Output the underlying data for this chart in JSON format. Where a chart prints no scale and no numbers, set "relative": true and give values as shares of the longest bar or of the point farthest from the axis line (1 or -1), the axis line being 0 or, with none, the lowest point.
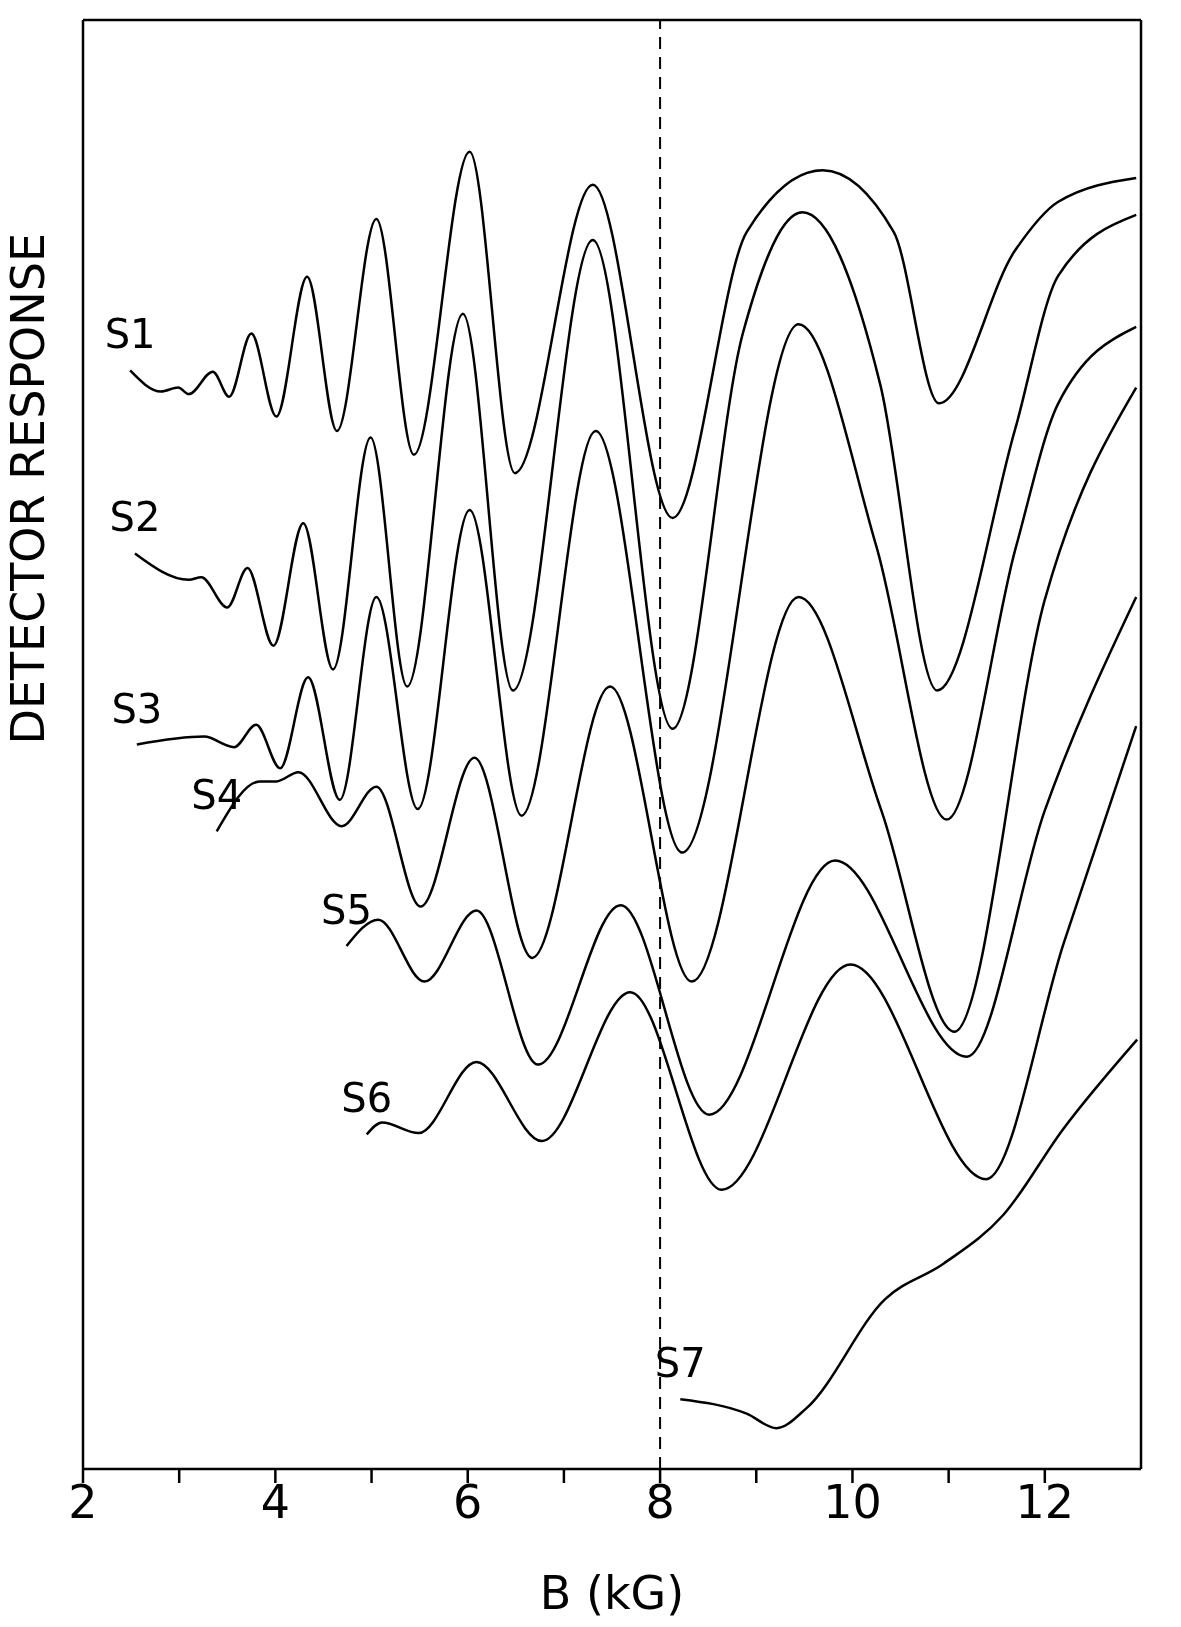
{
  "chart_data": {
    "type": "line",
    "relative": true,
    "xlabel": "B (kG)",
    "ylabel": "DETECTOR RESPONSE",
    "xlim": [
      2,
      13
    ],
    "xticks": [
      2,
      {
        "value": 3,
        "label": null
      },
      4,
      {
        "value": 5,
        "label": null
      },
      6,
      {
        "value": 7,
        "label": null
      },
      8,
      {
        "value": 9,
        "label": null
      },
      10,
      {
        "value": 11,
        "label": null
      },
      12
    ],
    "marker": "none",
    "line_style": "solid",
    "ref_lines": [
      {
        "axis": "x",
        "value": 8,
        "line_style": "dashed",
        "color": "#000000"
      }
    ],
    "series": [
      {
        "name": "S1",
        "color": "#000000",
        "x": [
          2.49,
          2.81,
          2.99,
          3.1,
          3.35,
          3.52,
          3.75,
          4.01,
          4.33,
          4.64,
          5.05,
          5.44,
          6.02,
          6.49,
          7.3,
          8.13,
          8.9,
          9.69,
          10.43,
          10.9,
          11.69,
          12.14,
          12.95
        ],
        "values": [
          0.834,
          0.818,
          0.821,
          0.816,
          0.833,
          0.814,
          0.862,
          0.799,
          0.905,
          0.788,
          0.949,
          0.77,
          1,
          0.756,
          0.975,
          0.722,
          0.939,
          0.986,
          0.939,
          0.809,
          0.925,
          0.962,
          0.98
        ]
      },
      {
        "name": "S2",
        "color": "#000000",
        "x": [
          2.54,
          3.1,
          3.23,
          3.5,
          3.71,
          3.98,
          4.29,
          4.6,
          4.99,
          5.37,
          5.95,
          6.47,
          7.3,
          8.13,
          8.86,
          9.48,
          10.29,
          10.88,
          11.69,
          12.14,
          12.95
        ],
        "values": [
          0.695,
          0.675,
          0.677,
          0.654,
          0.684,
          0.625,
          0.718,
          0.607,
          0.783,
          0.594,
          0.877,
          0.591,
          0.933,
          0.562,
          0.862,
          0.954,
          0.823,
          0.591,
          0.789,
          0.906,
          0.952
        ]
      },
      {
        "name": "S3",
        "color": "#000000",
        "x": [
          2.56,
          3.26,
          3.57,
          3.8,
          4.05,
          4.34,
          4.67,
          5.05,
          5.48,
          6.02,
          6.56,
          7.33,
          8.23,
          9.44,
          10.25,
          10.98,
          11.7,
          12.14,
          12.95
        ],
        "values": [
          0.55,
          0.556,
          0.548,
          0.565,
          0.532,
          0.601,
          0.508,
          0.662,
          0.501,
          0.728,
          0.496,
          0.788,
          0.468,
          0.869,
          0.7,
          0.493,
          0.7,
          0.809,
          0.867
        ]
      },
      {
        "name": "S4",
        "color": "#000000",
        "x": [
          3.39,
          3.84,
          4.01,
          4.24,
          4.69,
          5.05,
          5.51,
          6.07,
          6.67,
          7.48,
          8.33,
          9.44,
          10.3,
          11.06,
          12.0,
          12.95
        ],
        "values": [
          0.484,
          0.522,
          0.522,
          0.529,
          0.488,
          0.518,
          0.427,
          0.54,
          0.388,
          0.594,
          0.37,
          0.662,
          0.5,
          0.332,
          0.66,
          0.821
        ]
      },
      {
        "name": "S5",
        "color": "#000000",
        "x": [
          4.74,
          5.07,
          5.55,
          6.09,
          6.73,
          7.59,
          8.51,
          9.82,
          11.19,
          12.0,
          12.95
        ],
        "values": [
          0.397,
          0.417,
          0.37,
          0.424,
          0.307,
          0.428,
          0.269,
          0.462,
          0.313,
          0.5,
          0.662
        ]
      },
      {
        "name": "S6",
        "color": "#000000",
        "x": [
          4.95,
          5.11,
          5.49,
          6.09,
          6.77,
          7.69,
          8.64,
          9.98,
          11.39,
          12.2,
          12.95
        ],
        "values": [
          0.254,
          0.263,
          0.255,
          0.309,
          0.249,
          0.362,
          0.212,
          0.383,
          0.22,
          0.4,
          0.564
        ]
      },
      {
        "name": "S7",
        "color": "#000000",
        "x": [
          8.21,
          8.9,
          9.21,
          9.52,
          10.34,
          10.95,
          11.57,
          12.19,
          12.96
        ],
        "values": [
          0.053,
          0.042,
          0.031,
          0.046,
          0.129,
          0.156,
          0.193,
          0.258,
          0.326
        ]
      }
    ]
  }
}
